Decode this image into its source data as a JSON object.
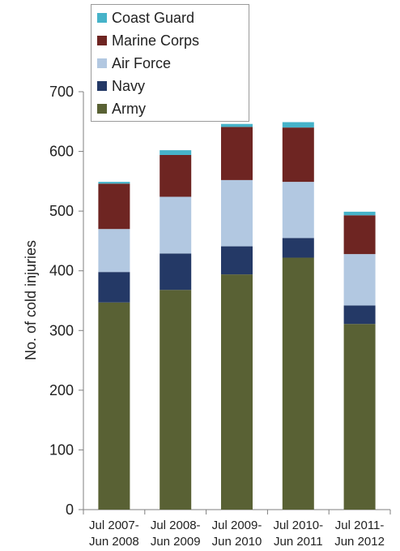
{
  "chart_data": {
    "type": "bar",
    "stacked": true,
    "categories": [
      [
        "Jul 2007-",
        "Jun 2008"
      ],
      [
        "Jul 2008-",
        "Jun 2009"
      ],
      [
        "Jul 2009-",
        "Jun 2010"
      ],
      [
        "Jul 2010-",
        "Jun 2011"
      ],
      [
        "Jul 2011-",
        "Jun 2012"
      ]
    ],
    "series": [
      {
        "name": "Army",
        "color": "#596134",
        "values": [
          347,
          368,
          394,
          422,
          311
        ]
      },
      {
        "name": "Navy",
        "color": "#243966",
        "values": [
          51,
          61,
          47,
          33,
          31
        ]
      },
      {
        "name": "Air Force",
        "color": "#b2c8e1",
        "values": [
          72,
          95,
          111,
          94,
          86
        ]
      },
      {
        "name": "Marine Corps",
        "color": "#6e2522",
        "values": [
          76,
          70,
          89,
          91,
          65
        ]
      },
      {
        "name": "Coast Guard",
        "color": "#46b3c9",
        "values": [
          3,
          8,
          5,
          9,
          6
        ]
      }
    ],
    "legend_order": [
      "Coast Guard",
      "Marine Corps",
      "Air Force",
      "Navy",
      "Army"
    ],
    "ylabel": "No. of cold injuries",
    "xlabel": "",
    "ylim": [
      0,
      700
    ],
    "yticks": [
      0,
      100,
      200,
      300,
      400,
      500,
      600,
      700
    ],
    "grid": false,
    "legend_position": "top-left"
  }
}
